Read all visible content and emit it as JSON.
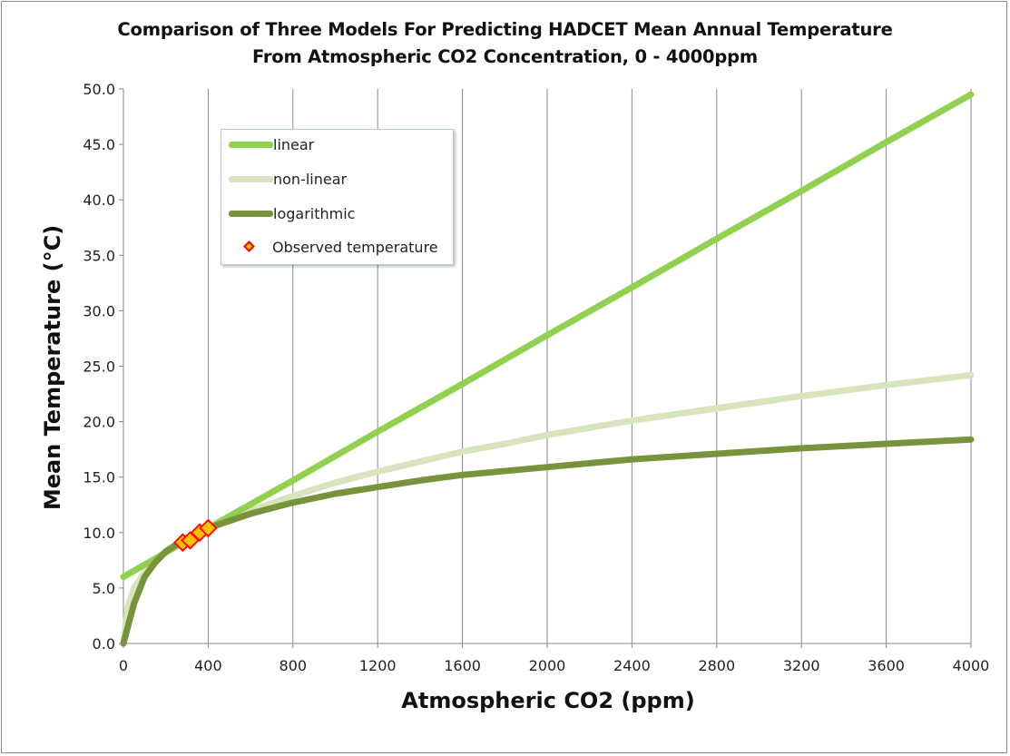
{
  "chart_data": {
    "type": "line",
    "title": "Comparison of Three Models For Predicting HADCET Mean Annual Temperature",
    "subtitle": "From Atmospheric CO2 Concentration, 0 - 4000ppm",
    "xlabel": "Atmospheric CO2 (ppm)",
    "ylabel": "Mean Temperature (°C)",
    "xlim": [
      0,
      4000
    ],
    "ylim": [
      0,
      50
    ],
    "x_ticks": [
      0,
      400,
      800,
      1200,
      1600,
      2000,
      2400,
      2800,
      3200,
      3600,
      4000
    ],
    "x_tick_labels": [
      "0",
      "400",
      "800",
      "1200",
      "1600",
      "2000",
      "2400",
      "2800",
      "3200",
      "3600",
      "4000"
    ],
    "y_ticks": [
      0,
      5,
      10,
      15,
      20,
      25,
      30,
      35,
      40,
      45,
      50
    ],
    "y_tick_labels": [
      "0.0",
      "5.0",
      "10.0",
      "15.0",
      "20.0",
      "25.0",
      "30.0",
      "35.0",
      "40.0",
      "45.0",
      "50.0"
    ],
    "grid": "vertical",
    "legend_position": "top-left",
    "series": [
      {
        "name": "linear",
        "color": "#92d050",
        "x": [
          0,
          400,
          800,
          1200,
          1600,
          2000,
          2400,
          2800,
          3200,
          3600,
          4000
        ],
        "values": [
          6.0,
          10.4,
          14.7,
          19.1,
          23.4,
          27.8,
          32.1,
          36.5,
          40.8,
          45.2,
          49.5
        ]
      },
      {
        "name": "non-linear",
        "color": "#d7e4bd",
        "x": [
          0,
          20,
          50,
          100,
          200,
          300,
          400,
          600,
          800,
          1000,
          1200,
          1400,
          1600,
          1800,
          2000,
          2400,
          2800,
          3200,
          3600,
          4000
        ],
        "values": [
          0.0,
          3.3,
          5.0,
          6.4,
          8.2,
          9.4,
          10.4,
          12.0,
          13.3,
          14.5,
          15.5,
          16.4,
          17.3,
          18.0,
          18.8,
          20.1,
          21.2,
          22.3,
          23.3,
          24.2
        ]
      },
      {
        "name": "logarithmic",
        "color": "#77933c",
        "x": [
          0,
          25,
          50,
          100,
          150,
          200,
          280,
          350,
          400,
          600,
          800,
          1000,
          1200,
          1400,
          1600,
          2000,
          2400,
          2800,
          3200,
          3600,
          4000
        ],
        "values": [
          0.0,
          1.8,
          3.6,
          6.0,
          7.3,
          8.3,
          9.3,
          10.0,
          10.4,
          11.7,
          12.7,
          13.5,
          14.1,
          14.7,
          15.2,
          15.9,
          16.6,
          17.1,
          17.6,
          18.0,
          18.4
        ]
      }
    ],
    "observed": {
      "name": "Observed temperature",
      "color": "#ffc000",
      "edge_color": "#ff0000",
      "x": [
        280,
        315,
        360,
        400
      ],
      "values": [
        9.1,
        9.3,
        10.0,
        10.4
      ]
    }
  }
}
